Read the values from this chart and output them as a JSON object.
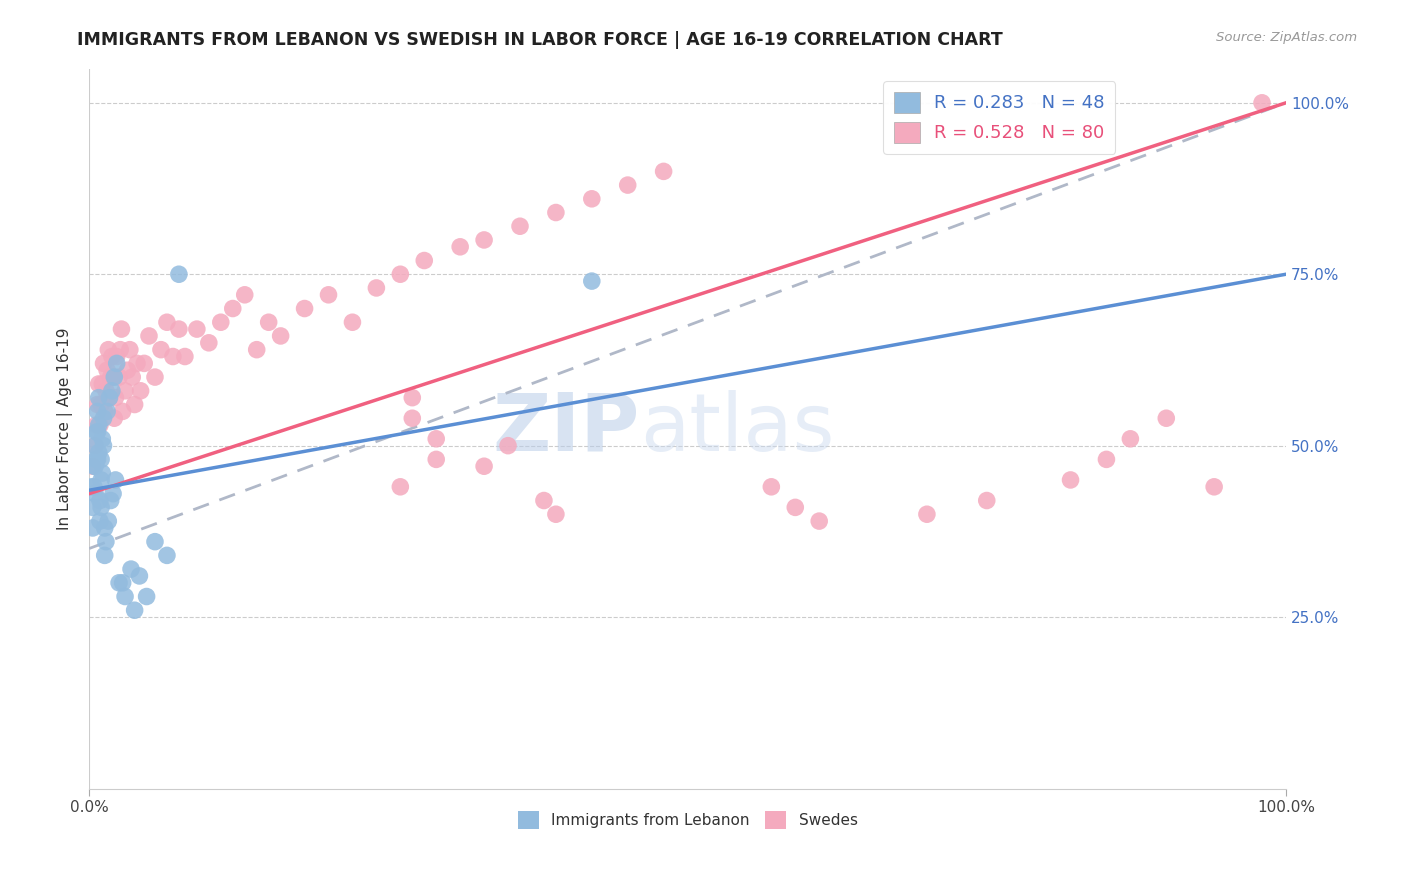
{
  "title": "IMMIGRANTS FROM LEBANON VS SWEDISH IN LABOR FORCE | AGE 16-19 CORRELATION CHART",
  "source": "Source: ZipAtlas.com",
  "ylabel": "In Labor Force | Age 16-19",
  "legend1_label": "R = 0.283   N = 48",
  "legend2_label": "R = 0.528   N = 80",
  "legend_bottom": [
    "Immigrants from Lebanon",
    "Swedes"
  ],
  "blue_color": "#92BBDE",
  "pink_color": "#F4AABE",
  "blue_line_color": "#5B8FD4",
  "pink_line_color": "#F06080",
  "dashed_line_color": "#B0B8C8",
  "background_color": "#FFFFFF",
  "watermark_zip": "ZIP",
  "watermark_atlas": "atlas",
  "blue_scatter_x": [
    0.002,
    0.003,
    0.003,
    0.004,
    0.004,
    0.005,
    0.005,
    0.005,
    0.006,
    0.006,
    0.007,
    0.007,
    0.007,
    0.008,
    0.008,
    0.008,
    0.009,
    0.009,
    0.01,
    0.01,
    0.01,
    0.011,
    0.011,
    0.012,
    0.012,
    0.013,
    0.013,
    0.014,
    0.015,
    0.016,
    0.017,
    0.018,
    0.019,
    0.02,
    0.021,
    0.022,
    0.023,
    0.025,
    0.028,
    0.03,
    0.035,
    0.038,
    0.042,
    0.048,
    0.055,
    0.065,
    0.075,
    0.42
  ],
  "blue_scatter_y": [
    0.44,
    0.41,
    0.38,
    0.47,
    0.44,
    0.5,
    0.47,
    0.43,
    0.52,
    0.48,
    0.55,
    0.52,
    0.48,
    0.57,
    0.53,
    0.49,
    0.42,
    0.39,
    0.48,
    0.45,
    0.41,
    0.51,
    0.46,
    0.54,
    0.5,
    0.38,
    0.34,
    0.36,
    0.55,
    0.39,
    0.57,
    0.42,
    0.58,
    0.43,
    0.6,
    0.45,
    0.62,
    0.3,
    0.3,
    0.28,
    0.32,
    0.26,
    0.31,
    0.28,
    0.36,
    0.34,
    0.75,
    0.74
  ],
  "pink_scatter_x": [
    0.003,
    0.005,
    0.006,
    0.007,
    0.008,
    0.009,
    0.01,
    0.011,
    0.012,
    0.013,
    0.014,
    0.015,
    0.016,
    0.017,
    0.018,
    0.019,
    0.02,
    0.021,
    0.022,
    0.023,
    0.025,
    0.026,
    0.027,
    0.028,
    0.03,
    0.032,
    0.034,
    0.036,
    0.038,
    0.04,
    0.043,
    0.046,
    0.05,
    0.055,
    0.06,
    0.065,
    0.07,
    0.075,
    0.08,
    0.09,
    0.1,
    0.11,
    0.12,
    0.13,
    0.14,
    0.15,
    0.16,
    0.18,
    0.2,
    0.22,
    0.24,
    0.26,
    0.28,
    0.31,
    0.33,
    0.36,
    0.39,
    0.42,
    0.45,
    0.48,
    0.33,
    0.35,
    0.27,
    0.27,
    0.29,
    0.29,
    0.26,
    0.38,
    0.39,
    0.57,
    0.59,
    0.61,
    0.7,
    0.75,
    0.82,
    0.85,
    0.87,
    0.9,
    0.94,
    0.98
  ],
  "pink_scatter_y": [
    0.47,
    0.5,
    0.53,
    0.56,
    0.59,
    0.53,
    0.56,
    0.59,
    0.62,
    0.55,
    0.58,
    0.61,
    0.64,
    0.57,
    0.6,
    0.63,
    0.6,
    0.54,
    0.57,
    0.63,
    0.6,
    0.64,
    0.67,
    0.55,
    0.58,
    0.61,
    0.64,
    0.6,
    0.56,
    0.62,
    0.58,
    0.62,
    0.66,
    0.6,
    0.64,
    0.68,
    0.63,
    0.67,
    0.63,
    0.67,
    0.65,
    0.68,
    0.7,
    0.72,
    0.64,
    0.68,
    0.66,
    0.7,
    0.72,
    0.68,
    0.73,
    0.75,
    0.77,
    0.79,
    0.8,
    0.82,
    0.84,
    0.86,
    0.88,
    0.9,
    0.47,
    0.5,
    0.54,
    0.57,
    0.51,
    0.48,
    0.44,
    0.42,
    0.4,
    0.44,
    0.41,
    0.39,
    0.4,
    0.42,
    0.45,
    0.48,
    0.51,
    0.54,
    0.44,
    1.0
  ],
  "blue_line_x": [
    0.0,
    1.0
  ],
  "blue_line_y": [
    0.435,
    0.75
  ],
  "pink_line_x": [
    0.0,
    1.0
  ],
  "pink_line_y": [
    0.43,
    1.0
  ],
  "dashed_line_x": [
    0.0,
    1.0
  ],
  "dashed_line_y": [
    0.35,
    1.0
  ],
  "xlim": [
    0.0,
    1.0
  ],
  "ylim": [
    0.0,
    1.05
  ],
  "x_ticks": [
    0.0,
    1.0
  ],
  "y_ticks": [
    0.25,
    0.5,
    0.75,
    1.0
  ]
}
